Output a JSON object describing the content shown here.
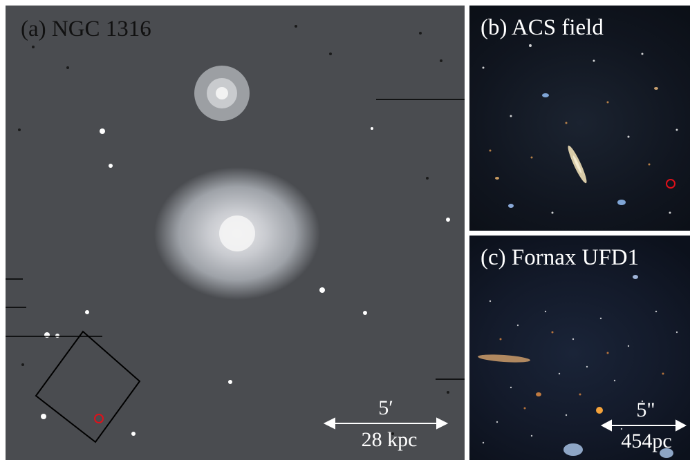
{
  "panel_a": {
    "label": "(a) NGC 1316",
    "scale_top": "5′",
    "scale_bottom": "28 kpc",
    "marker_color": "#e0101a"
  },
  "panel_b": {
    "label": "(b) ACS field",
    "marker_color": "#e0101a"
  },
  "panel_c": {
    "label": "(c) Fornax UFD1",
    "scale_top": "5\"",
    "scale_bottom": "454pc"
  }
}
